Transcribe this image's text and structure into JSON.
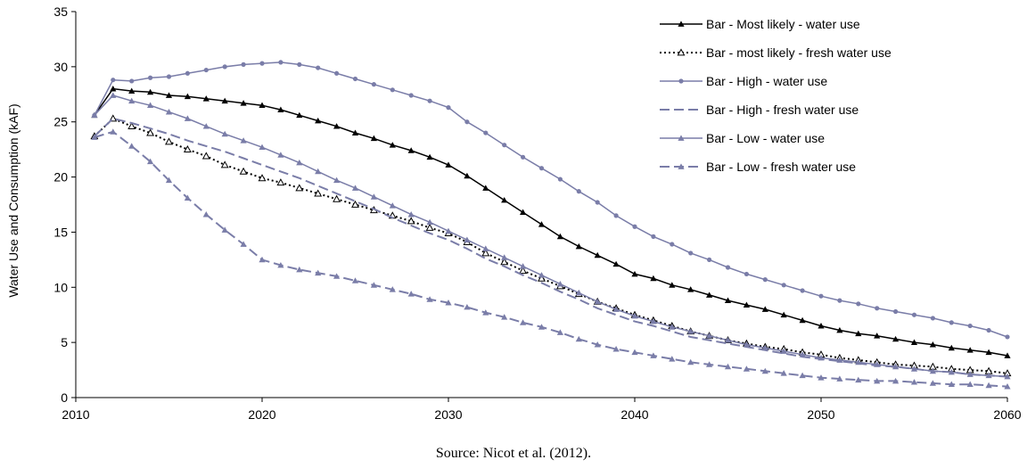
{
  "caption": "Source: Nicot et al. (2012).",
  "chart_data": {
    "type": "line",
    "xlabel": "",
    "ylabel": "Water Use and Consumption (kAF)",
    "xlim": [
      2010,
      2060
    ],
    "ylim": [
      0,
      35
    ],
    "xticks": [
      2010,
      2020,
      2030,
      2040,
      2050,
      2060
    ],
    "yticks": [
      0,
      5,
      10,
      15,
      20,
      25,
      30,
      35
    ],
    "grid": false,
    "legend_position": "top-right",
    "x": [
      2011,
      2012,
      2013,
      2014,
      2015,
      2016,
      2017,
      2018,
      2019,
      2020,
      2021,
      2022,
      2023,
      2024,
      2025,
      2026,
      2027,
      2028,
      2029,
      2030,
      2031,
      2032,
      2033,
      2034,
      2035,
      2036,
      2037,
      2038,
      2039,
      2040,
      2041,
      2042,
      2043,
      2044,
      2045,
      2046,
      2047,
      2048,
      2049,
      2050,
      2051,
      2052,
      2053,
      2054,
      2055,
      2056,
      2057,
      2058,
      2059,
      2060
    ],
    "series": [
      {
        "name": "Bar - Most likely - water use",
        "color": "#000000",
        "dash": "solid",
        "marker": "triangle-filled",
        "values": [
          25.6,
          28.0,
          27.8,
          27.7,
          27.4,
          27.3,
          27.1,
          26.9,
          26.7,
          26.5,
          26.1,
          25.6,
          25.1,
          24.6,
          24.0,
          23.5,
          22.9,
          22.4,
          21.8,
          21.1,
          20.1,
          19.0,
          17.9,
          16.8,
          15.7,
          14.6,
          13.7,
          12.9,
          12.1,
          11.2,
          10.8,
          10.2,
          9.8,
          9.3,
          8.8,
          8.4,
          8.0,
          7.5,
          7.0,
          6.5,
          6.1,
          5.8,
          5.6,
          5.3,
          5.0,
          4.8,
          4.5,
          4.3,
          4.1,
          3.8
        ]
      },
      {
        "name": "Bar - most likely - fresh water use",
        "color": "#000000",
        "dash": "dotted",
        "marker": "triangle-open",
        "values": [
          23.7,
          25.3,
          24.6,
          24.0,
          23.2,
          22.5,
          21.9,
          21.1,
          20.5,
          19.9,
          19.5,
          19.0,
          18.5,
          18.0,
          17.5,
          17.0,
          16.5,
          16.0,
          15.4,
          14.9,
          14.1,
          13.1,
          12.3,
          11.5,
          10.8,
          10.1,
          9.4,
          8.7,
          8.1,
          7.5,
          7.0,
          6.5,
          6.0,
          5.6,
          5.2,
          4.9,
          4.6,
          4.4,
          4.1,
          3.9,
          3.6,
          3.4,
          3.2,
          3.0,
          2.9,
          2.8,
          2.6,
          2.5,
          2.4,
          2.2
        ]
      },
      {
        "name": "Bar - High - water use",
        "color": "#7a7da8",
        "dash": "solid",
        "marker": "dot",
        "values": [
          25.6,
          28.8,
          28.7,
          29.0,
          29.1,
          29.4,
          29.7,
          30.0,
          30.2,
          30.3,
          30.4,
          30.2,
          29.9,
          29.4,
          28.9,
          28.4,
          27.9,
          27.4,
          26.9,
          26.3,
          25.0,
          24.0,
          22.9,
          21.8,
          20.8,
          19.8,
          18.7,
          17.7,
          16.5,
          15.5,
          14.6,
          13.9,
          13.1,
          12.5,
          11.8,
          11.2,
          10.7,
          10.2,
          9.7,
          9.2,
          8.8,
          8.5,
          8.1,
          7.8,
          7.5,
          7.2,
          6.8,
          6.5,
          6.1,
          5.5
        ]
      },
      {
        "name": "Bar - High - fresh water use",
        "color": "#7a7da8",
        "dash": "dashed",
        "marker": "none",
        "values": [
          23.7,
          25.3,
          24.9,
          24.4,
          23.9,
          23.3,
          22.8,
          22.3,
          21.7,
          21.1,
          20.5,
          19.9,
          19.2,
          18.5,
          17.8,
          17.1,
          16.3,
          15.6,
          14.9,
          14.3,
          13.5,
          12.6,
          11.9,
          11.1,
          10.4,
          9.6,
          8.9,
          8.1,
          7.5,
          6.9,
          6.5,
          6.0,
          5.5,
          5.2,
          4.9,
          4.6,
          4.3,
          4.0,
          3.7,
          3.5,
          3.3,
          3.1,
          2.9,
          2.8,
          2.6,
          2.4,
          2.3,
          2.1,
          2.0,
          1.9
        ]
      },
      {
        "name": "Bar - Low - water use",
        "color": "#7a7da8",
        "dash": "solid",
        "marker": "triangle-filled",
        "values": [
          25.6,
          27.4,
          26.9,
          26.5,
          25.9,
          25.3,
          24.6,
          23.9,
          23.3,
          22.7,
          22.0,
          21.3,
          20.5,
          19.7,
          19.0,
          18.2,
          17.4,
          16.6,
          15.9,
          15.1,
          14.3,
          13.5,
          12.7,
          11.9,
          11.1,
          10.3,
          9.5,
          8.7,
          8.0,
          7.4,
          6.9,
          6.4,
          6.0,
          5.6,
          5.2,
          4.8,
          4.5,
          4.2,
          3.9,
          3.6,
          3.4,
          3.2,
          3.0,
          2.8,
          2.6,
          2.4,
          2.3,
          2.1,
          2.0,
          1.9
        ]
      },
      {
        "name": "Bar - Low - fresh water use",
        "color": "#7a7da8",
        "dash": "dashed",
        "marker": "triangle-filled",
        "values": [
          23.6,
          24.1,
          22.8,
          21.4,
          19.7,
          18.1,
          16.6,
          15.2,
          13.9,
          12.5,
          12.0,
          11.6,
          11.3,
          11.0,
          10.6,
          10.2,
          9.8,
          9.4,
          8.9,
          8.6,
          8.2,
          7.7,
          7.3,
          6.8,
          6.4,
          5.9,
          5.3,
          4.8,
          4.4,
          4.1,
          3.8,
          3.5,
          3.2,
          3.0,
          2.8,
          2.6,
          2.4,
          2.2,
          2.0,
          1.8,
          1.7,
          1.6,
          1.5,
          1.5,
          1.4,
          1.3,
          1.2,
          1.2,
          1.1,
          1.0
        ]
      }
    ]
  }
}
